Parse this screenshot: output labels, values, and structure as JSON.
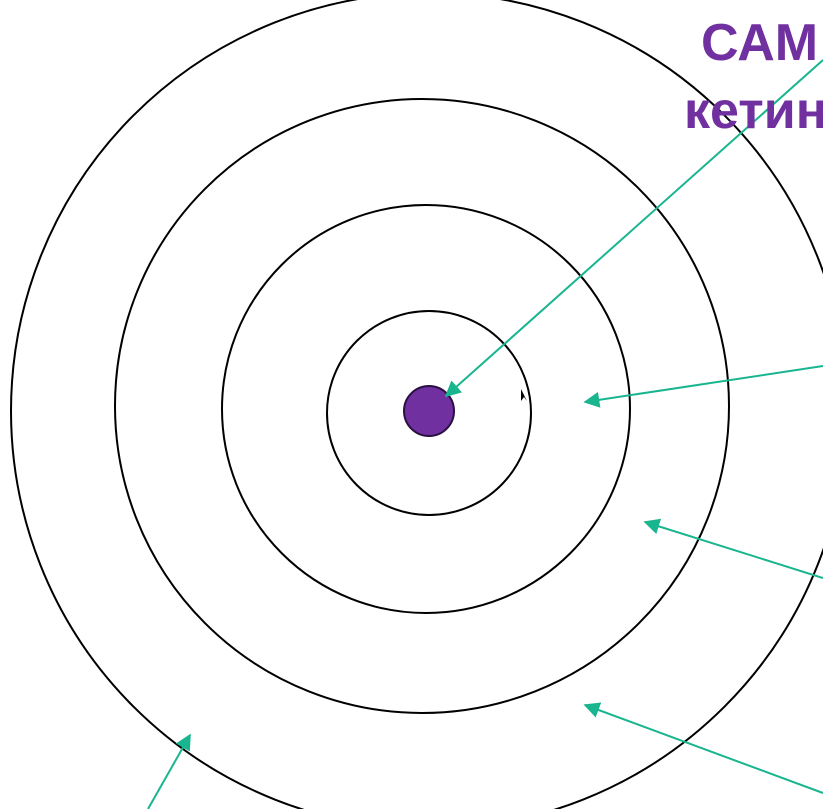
{
  "title": {
    "line1": "САМ",
    "line2": "кетин"
  },
  "colors": {
    "title": "#7030a0",
    "core": "#7030a0",
    "rings": "#000000",
    "arrows": "#19b58f"
  }
}
